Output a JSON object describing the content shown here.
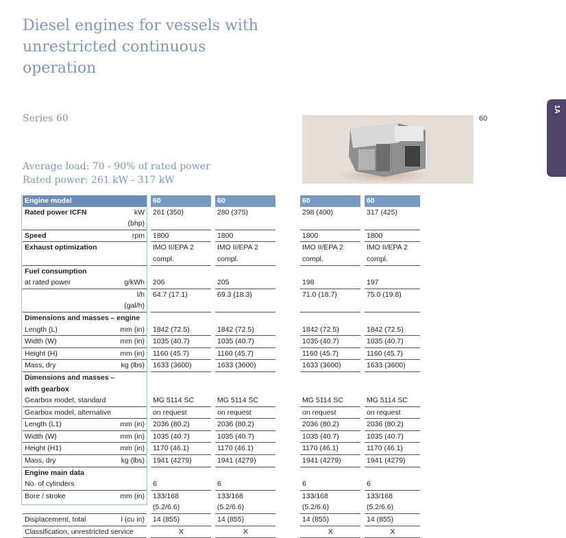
{
  "title": "Diesel engines for vessels with unrestricted continuous operation",
  "series": "Series 60",
  "average_load": "Average load: 70 - 90% of rated power",
  "rated_power": "Rated power: 261 kW - 317 kW",
  "photo_caption": "60",
  "side_tab": "1A",
  "colors": {
    "heading": "#7f97b5",
    "header_bg": "#6d8db6",
    "tab": "#4f4469"
  },
  "table": {
    "header": {
      "label": "Engine model",
      "values": [
        "60",
        "60",
        "60",
        "60"
      ]
    },
    "rows": [
      {
        "label": "Rated power ICFN",
        "unit": "kW (bhp)",
        "values": [
          "261 (350)",
          "280 (375)",
          "298 (400)",
          "317 (425)"
        ],
        "bold": true,
        "border": true
      },
      {
        "label": "Speed",
        "unit": "rpm",
        "values": [
          "1800",
          "1800",
          "1800",
          "1800"
        ],
        "bold": true,
        "border": true
      },
      {
        "label": "Exhaust optimization",
        "unit": "",
        "values": [
          "IMO II/EPA 2\ncompl.",
          "IMO II/EPA 2\ncompl.",
          "IMO II/EPA 2\ncompl.",
          "IMO II/EPA 2\ncompl."
        ],
        "bold": true,
        "border": true
      },
      {
        "label": "Fuel consumption",
        "section": true
      },
      {
        "label": "at rated power",
        "unit": "g/kWh",
        "values": [
          "206",
          "205",
          "198",
          "197"
        ],
        "border": true
      },
      {
        "label": "",
        "unit": "l/h (gal/h)",
        "values": [
          "64.7 (17.1)",
          "69.3 (18.3)",
          "71.0 (18.7)",
          "75.0 (19.8)"
        ],
        "border": true
      },
      {
        "label": "Dimensions and masses – engine",
        "section": true
      },
      {
        "label": "Length (L)",
        "unit": "mm (in)",
        "values": [
          "1842 (72.5)",
          "1842 (72.5)",
          "1842 (72.5)",
          "1842 (72.5)"
        ],
        "border": true
      },
      {
        "label": "Width (W)",
        "unit": "mm (in)",
        "values": [
          "1035 (40.7)",
          "1035 (40.7)",
          "1035 (40.7)",
          "1035 (40.7)"
        ],
        "border": true
      },
      {
        "label": "Height (H)",
        "unit": "mm (in)",
        "values": [
          "1160 (45.7)",
          "1160 (45.7)",
          "1160 (45.7)",
          "1160 (45.7)"
        ],
        "border": true
      },
      {
        "label": "Mass, dry",
        "unit": "kg (lbs)",
        "values": [
          "1633 (3600)",
          "1633 (3600)",
          "1633 (3600)",
          "1633 (3600)"
        ],
        "border": true
      },
      {
        "label": "Dimensions and masses –\nwith gearbox",
        "section": true
      },
      {
        "label": "Gearbox model, standard",
        "unit": "",
        "values": [
          "MG 5114 SC",
          "MG 5114 SC",
          "MG 5114 SC",
          "MG 5114 SC"
        ],
        "border": true
      },
      {
        "label": "Gearbox model, alternative",
        "unit": "",
        "values": [
          "on request",
          "on request",
          "on request",
          "on request"
        ],
        "border": true
      },
      {
        "label": "Length (L1)",
        "unit": "mm (in)",
        "values": [
          "2036 (80.2)",
          "2036 (80.2)",
          "2036 (80.2)",
          "2036 (80.2)"
        ],
        "border": true
      },
      {
        "label": "Width (W)",
        "unit": "mm (in)",
        "values": [
          "1035 (40.7)",
          "1035 (40.7)",
          "1035 (40.7)",
          "1035 (40.7)"
        ],
        "border": true
      },
      {
        "label": "Height (H1)",
        "unit": "mm (in)",
        "values": [
          "1170 (46.1)",
          "1170 (46.1)",
          "1170 (46.1)",
          "1170 (46.1)"
        ],
        "border": true
      },
      {
        "label": "Mass, dry",
        "unit": "kg (lbs)",
        "values": [
          "1941 (4279)",
          "1941 (4279)",
          "1941 (4279)",
          "1941 (4279)"
        ],
        "border": true
      },
      {
        "label": "Engine main data",
        "section": true
      },
      {
        "label": "No. of cylinders",
        "unit": "",
        "values": [
          "6",
          "6",
          "6",
          "6"
        ],
        "border": true
      },
      {
        "label": "Bore / stroke",
        "unit": "mm (in)",
        "values": [
          "133/168\n(5.2/6.6)",
          "133/168\n(5.2/6.6)",
          "133/168\n(5.2/6.6)",
          "133/168\n(5.2/6.6)"
        ],
        "border": true
      },
      {
        "label": "Displacement, total",
        "unit": "l (cu in)",
        "values": [
          "14 (855)",
          "14 (855)",
          "14 (855)",
          "14 (855)"
        ],
        "border": true
      },
      {
        "label": "Classification, unrestricted service",
        "unit": "",
        "values": [
          "X",
          "X",
          "X",
          "X"
        ],
        "border": true,
        "center": true,
        "span": true
      }
    ]
  }
}
